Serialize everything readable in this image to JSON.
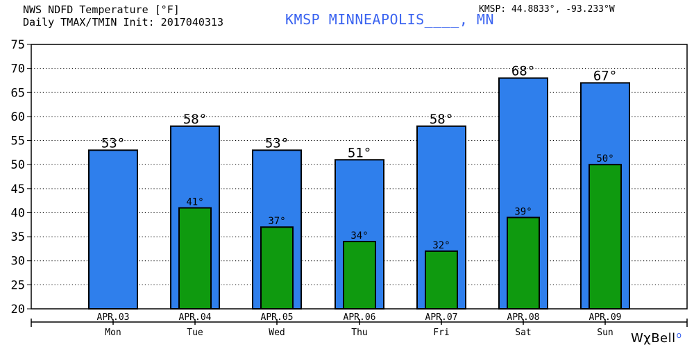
{
  "header": {
    "title_line1": "NWS NDFD Temperature [°F]",
    "title_line2": "Daily TMAX/TMIN Init: 2017040313",
    "station": "KMSP MINNEAPOLIS____, MN",
    "coords": "KMSP: 44.8833°, -93.233°W"
  },
  "branding": {
    "text": "WχBell",
    "mark": "o"
  },
  "colors": {
    "tmax_bar": "#2f7fec",
    "tmin_bar": "#0f9a0f",
    "station_text": "#3a63f0"
  },
  "chart_data": {
    "type": "bar",
    "categories": [
      "APR.03",
      "APR.04",
      "APR.05",
      "APR.06",
      "APR.07",
      "APR.08",
      "APR.09"
    ],
    "day_labels": [
      "Mon",
      "Tue",
      "Wed",
      "Thu",
      "Fri",
      "Sat",
      "Sun"
    ],
    "series": [
      {
        "values": [
          53,
          58,
          53,
          51,
          58,
          68,
          67
        ],
        "labels": [
          "53°",
          "58°",
          "53°",
          "51°",
          "58°",
          "68°",
          "67°"
        ]
      },
      {
        "values": [
          null,
          41,
          37,
          34,
          32,
          39,
          50
        ],
        "labels": [
          "",
          "41°",
          "37°",
          "34°",
          "32°",
          "39°",
          "50°"
        ]
      }
    ],
    "ylim": [
      20,
      75
    ],
    "yticks": [
      20,
      25,
      30,
      35,
      40,
      45,
      50,
      55,
      60,
      65,
      70,
      75
    ],
    "grid": "dashed horizontal",
    "legend": "none"
  }
}
